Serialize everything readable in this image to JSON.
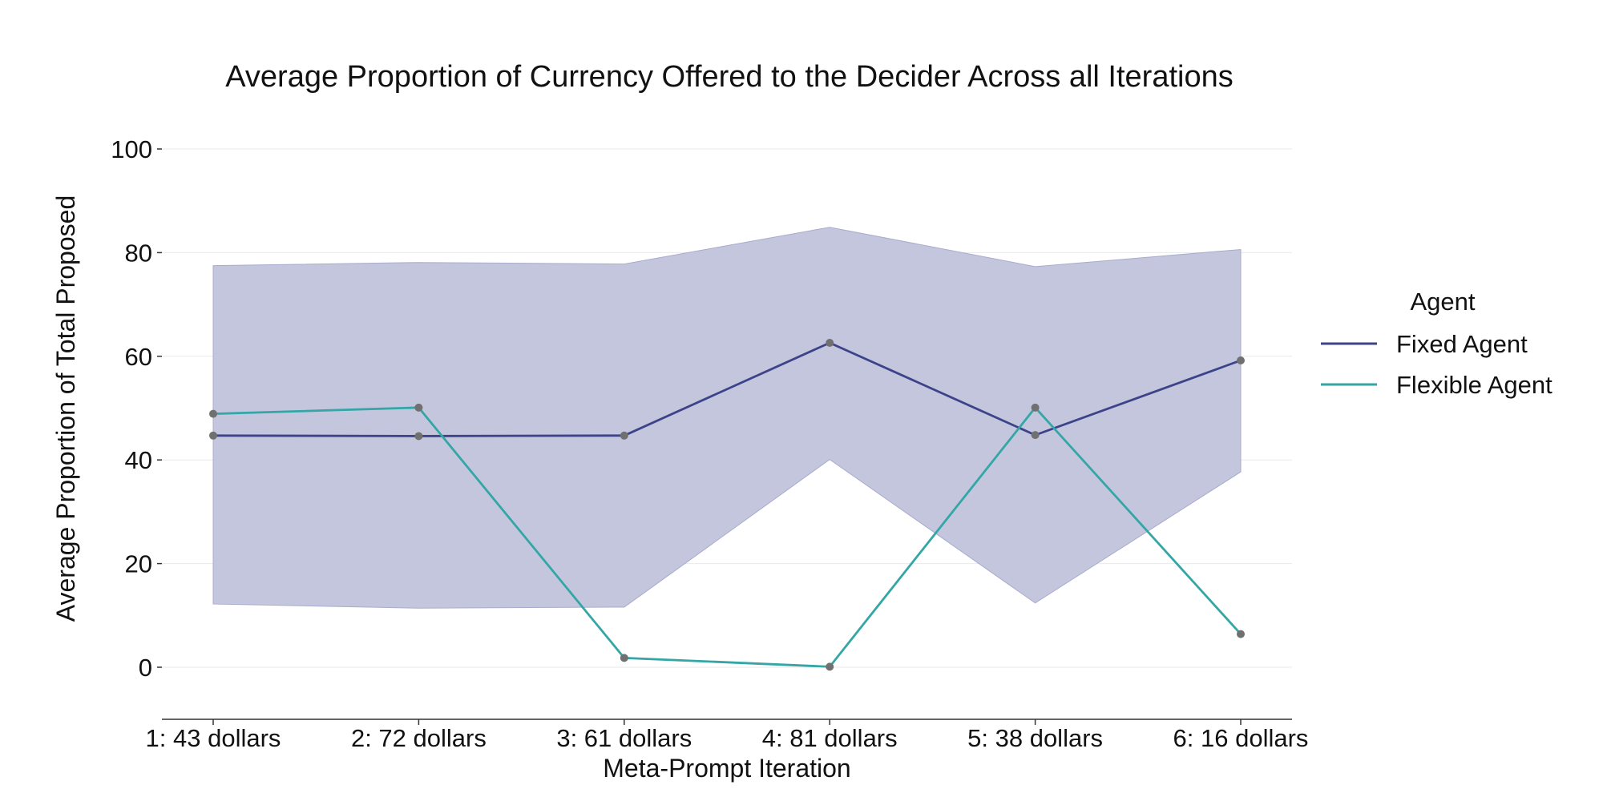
{
  "chart_data": {
    "type": "line",
    "title": "Average Proportion of Currency Offered to the Decider Across all Iterations",
    "xlabel": "Meta-Prompt Iteration",
    "ylabel": "Average Proportion of Total Proposed",
    "categories": [
      "1: 43 dollars",
      "2: 72 dollars",
      "3: 61 dollars",
      "4: 81 dollars",
      "5: 38 dollars",
      "6: 16 dollars"
    ],
    "ylim": [
      -10,
      110
    ],
    "yticks": [
      0,
      20,
      40,
      60,
      80,
      100
    ],
    "grid": "horizontal",
    "legend": {
      "title": "Agent",
      "placement": "right"
    },
    "series": [
      {
        "name": "Fixed Agent",
        "color": "#3d4389",
        "values": [
          44.7,
          44.6,
          44.7,
          62.6,
          44.8,
          59.2
        ],
        "band_lower": [
          12.2,
          11.4,
          11.6,
          40.1,
          12.4,
          37.7
        ],
        "band_upper": [
          77.5,
          78.1,
          77.8,
          84.9,
          77.3,
          80.6
        ],
        "band_color": "#c4c6dd"
      },
      {
        "name": "Flexible Agent",
        "color": "#34a6a6",
        "values": [
          48.9,
          50.1,
          1.8,
          0.1,
          50.1,
          6.4
        ]
      }
    ],
    "marker_color": "#707070"
  }
}
